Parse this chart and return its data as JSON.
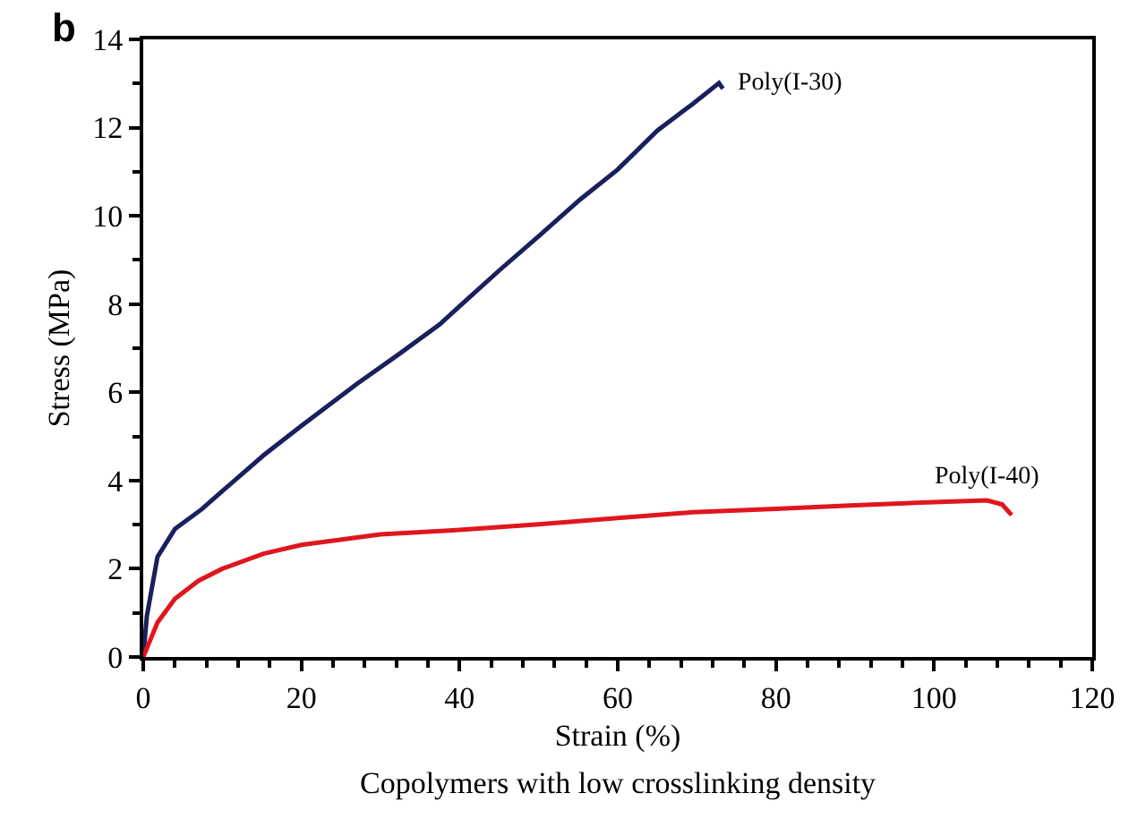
{
  "chart_data": {
    "type": "line",
    "xlabel": "Strain (%)",
    "ylabel": "Stress (MPa)",
    "xlim": [
      0,
      120
    ],
    "xticks": [
      0,
      20,
      40,
      60,
      80,
      100,
      120
    ],
    "ylim": [
      0,
      14
    ],
    "yticks": [
      0,
      2,
      4,
      6,
      8,
      10,
      12,
      14
    ],
    "legend": false,
    "marker": "none",
    "line_style": "solid",
    "annotations": [
      "b",
      "Copolymers with low crosslinking density"
    ],
    "series": [
      {
        "name": "Poly(I-30)",
        "color": "#1a1f5e",
        "x": [
          0,
          0.45,
          1.8,
          4,
          7.4,
          10,
          15.2,
          20,
          27,
          32.3,
          37.5,
          40,
          45,
          50.2,
          55.3,
          60,
          65,
          69.5,
          72.8,
          73.3
        ],
        "values": [
          0,
          0.92,
          2.27,
          2.9,
          3.35,
          3.76,
          4.57,
          5.24,
          6.19,
          6.86,
          7.54,
          7.95,
          8.76,
          9.57,
          10.38,
          11.05,
          11.93,
          12.54,
          13.01,
          12.88
        ]
      },
      {
        "name": "Poly(I-40)",
        "color": "#e0161e",
        "x": [
          0,
          1.8,
          4,
          7,
          10,
          15.2,
          20,
          30,
          40,
          50,
          60,
          69.5,
          80,
          90,
          100,
          106.7,
          108.6,
          109.8
        ],
        "values": [
          0,
          0.78,
          1.32,
          1.73,
          2.0,
          2.34,
          2.54,
          2.78,
          2.88,
          3.01,
          3.15,
          3.28,
          3.36,
          3.44,
          3.51,
          3.55,
          3.46,
          3.22
        ]
      }
    ]
  }
}
